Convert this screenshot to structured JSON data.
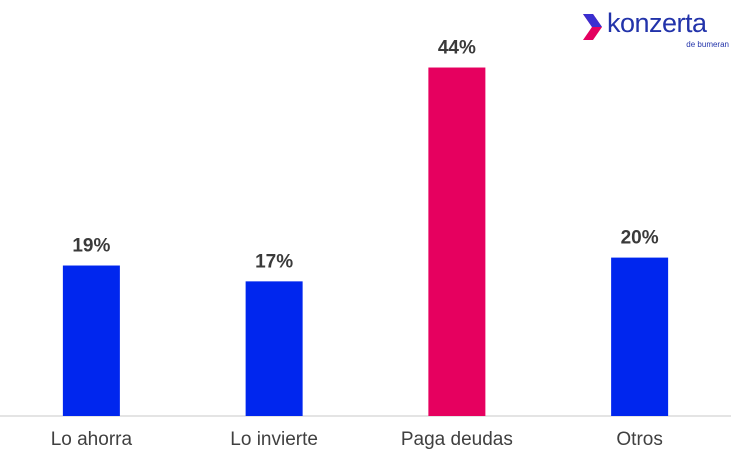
{
  "brand": {
    "name": "konzerta",
    "tagline": "de bumeran",
    "colors": {
      "blue": "#2a35c9",
      "pink": "#e4005f"
    }
  },
  "chart_data": {
    "type": "bar",
    "categories": [
      "Lo ahorra",
      "Lo invierte",
      "Paga deudas",
      "Otros"
    ],
    "values": [
      19,
      17,
      44,
      20
    ],
    "value_labels": [
      "19%",
      "17%",
      "44%",
      "20%"
    ],
    "colors": [
      "#0026ee",
      "#0026ee",
      "#e6005f",
      "#0026ee"
    ],
    "title": "",
    "xlabel": "",
    "ylabel": "",
    "ylim": [
      0,
      50
    ],
    "grid": false,
    "legend": "none"
  }
}
